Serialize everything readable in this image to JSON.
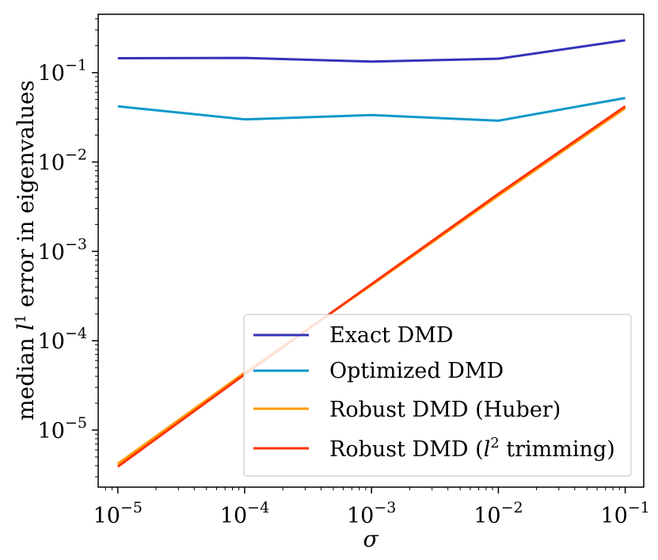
{
  "chart_data": {
    "type": "line",
    "xscale": "log",
    "yscale": "log",
    "xlabel": "σ",
    "ylabel": "median l1 error in eigenvalues",
    "ylabel_parts": {
      "before": "median ",
      "italic": "l",
      "sup": "1",
      "after": " error in eigenvalues"
    },
    "xlim": [
      7e-06,
      0.14
    ],
    "ylim": [
      2.3e-06,
      0.45
    ],
    "x": [
      1e-05,
      0.0001,
      0.001,
      0.01,
      0.1
    ],
    "xticks": [
      {
        "value": 1e-05,
        "base": "10",
        "exp": "−5"
      },
      {
        "value": 0.0001,
        "base": "10",
        "exp": "−4"
      },
      {
        "value": 0.001,
        "base": "10",
        "exp": "−3"
      },
      {
        "value": 0.01,
        "base": "10",
        "exp": "−2"
      },
      {
        "value": 0.1,
        "base": "10",
        "exp": "−1"
      }
    ],
    "yticks": [
      {
        "value": 1e-05,
        "base": "10",
        "exp": "−5"
      },
      {
        "value": 0.0001,
        "base": "10",
        "exp": "−4"
      },
      {
        "value": 0.001,
        "base": "10",
        "exp": "−3"
      },
      {
        "value": 0.01,
        "base": "10",
        "exp": "−2"
      },
      {
        "value": 0.1,
        "base": "10",
        "exp": "−1"
      }
    ],
    "grid": false,
    "legend_position": "lower-right",
    "series": [
      {
        "name": "Exact DMD",
        "color": "#3333bb",
        "values": [
          0.145,
          0.146,
          0.133,
          0.143,
          0.23
        ]
      },
      {
        "name": "Optimized DMD",
        "color": "#0f99c8",
        "values": [
          0.042,
          0.03,
          0.0335,
          0.029,
          0.052
        ]
      },
      {
        "name": "Robust DMD (Huber)",
        "color": "#ff9900",
        "values": [
          4.2e-06,
          4.4e-05,
          0.00042,
          0.0042,
          0.04
        ]
      },
      {
        "name": "Robust DMD (l2 trimming)",
        "color": "#ff3300",
        "values": [
          3.9e-06,
          4.2e-05,
          0.00043,
          0.0044,
          0.042
        ],
        "label_parts": {
          "before": "Robust DMD (",
          "italic": "l",
          "sup": "2",
          "after": " trimming)"
        }
      }
    ]
  }
}
